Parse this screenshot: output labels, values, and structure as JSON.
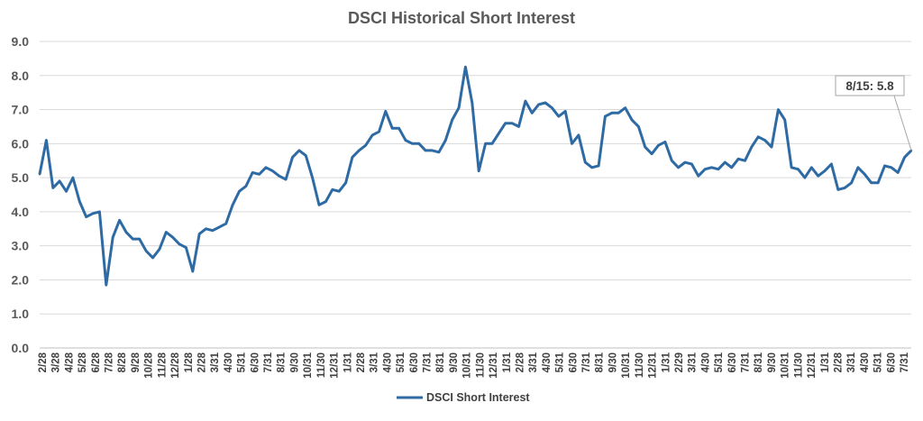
{
  "chart_data": {
    "type": "line",
    "title": "DSCI Historical Short Interest",
    "xlabel": "",
    "ylabel": "",
    "ylim": [
      0,
      9
    ],
    "y_ticks": [
      "0.0",
      "1.0",
      "2.0",
      "3.0",
      "4.0",
      "5.0",
      "6.0",
      "7.0",
      "8.0",
      "9.0"
    ],
    "x_tick_labels": [
      "2/28",
      "3/28",
      "4/28",
      "5/28",
      "6/28",
      "7/28",
      "8/28",
      "9/28",
      "10/28",
      "11/28",
      "12/28",
      "1/28",
      "2/28",
      "3/31",
      "4/30",
      "5/31",
      "6/30",
      "7/31",
      "8/31",
      "9/30",
      "10/31",
      "11/30",
      "12/31",
      "1/31",
      "2/28",
      "3/31",
      "4/30",
      "5/31",
      "6/30",
      "7/31",
      "8/31",
      "9/30",
      "10/31",
      "11/30",
      "12/31",
      "1/31",
      "2/28",
      "3/31",
      "4/30",
      "5/31",
      "6/30",
      "7/31",
      "8/31",
      "9/30",
      "10/31",
      "11/30",
      "12/31",
      "1/31",
      "2/29",
      "3/31",
      "4/30",
      "5/31",
      "6/30",
      "7/31",
      "8/31",
      "9/30",
      "10/31",
      "11/30",
      "12/31",
      "1/31",
      "2/28",
      "3/31",
      "4/30",
      "5/31",
      "6/30",
      "7/31"
    ],
    "grid": true,
    "legend_position": "bottom",
    "series": [
      {
        "name": "DSCI Short Interest",
        "color": "#2e6aa3",
        "values": [
          5.1,
          6.1,
          4.7,
          4.9,
          4.6,
          5.0,
          4.3,
          3.85,
          3.95,
          4.0,
          1.85,
          3.25,
          3.75,
          3.4,
          3.2,
          3.2,
          2.85,
          2.65,
          2.9,
          3.4,
          3.25,
          3.05,
          2.95,
          2.25,
          3.35,
          3.5,
          3.45,
          3.55,
          3.65,
          4.2,
          4.6,
          4.75,
          5.15,
          5.1,
          5.3,
          5.2,
          5.05,
          4.95,
          5.6,
          5.8,
          5.65,
          5.0,
          4.2,
          4.3,
          4.65,
          4.6,
          4.85,
          5.6,
          5.8,
          5.95,
          6.25,
          6.35,
          6.95,
          6.45,
          6.45,
          6.1,
          6.0,
          6.0,
          5.8,
          5.8,
          5.75,
          6.1,
          6.7,
          7.05,
          8.25,
          7.2,
          5.2,
          6.0,
          6.0,
          6.3,
          6.6,
          6.6,
          6.5,
          7.25,
          6.9,
          7.15,
          7.2,
          7.05,
          6.8,
          6.95,
          6.0,
          6.25,
          5.45,
          5.3,
          5.35,
          6.8,
          6.9,
          6.9,
          7.05,
          6.7,
          6.5,
          5.9,
          5.7,
          5.95,
          6.05,
          5.5,
          5.3,
          5.45,
          5.4,
          5.05,
          5.25,
          5.3,
          5.25,
          5.45,
          5.3,
          5.55,
          5.5,
          5.9,
          6.2,
          6.1,
          5.9,
          7.0,
          6.7,
          5.3,
          5.25,
          5.0,
          5.3,
          5.05,
          5.2,
          5.4,
          4.65,
          4.7,
          4.85,
          5.3,
          5.1,
          4.85,
          4.85,
          5.35,
          5.3,
          5.15,
          5.6,
          5.8
        ]
      }
    ],
    "annotation": {
      "text": "8/15: 5.8"
    }
  }
}
